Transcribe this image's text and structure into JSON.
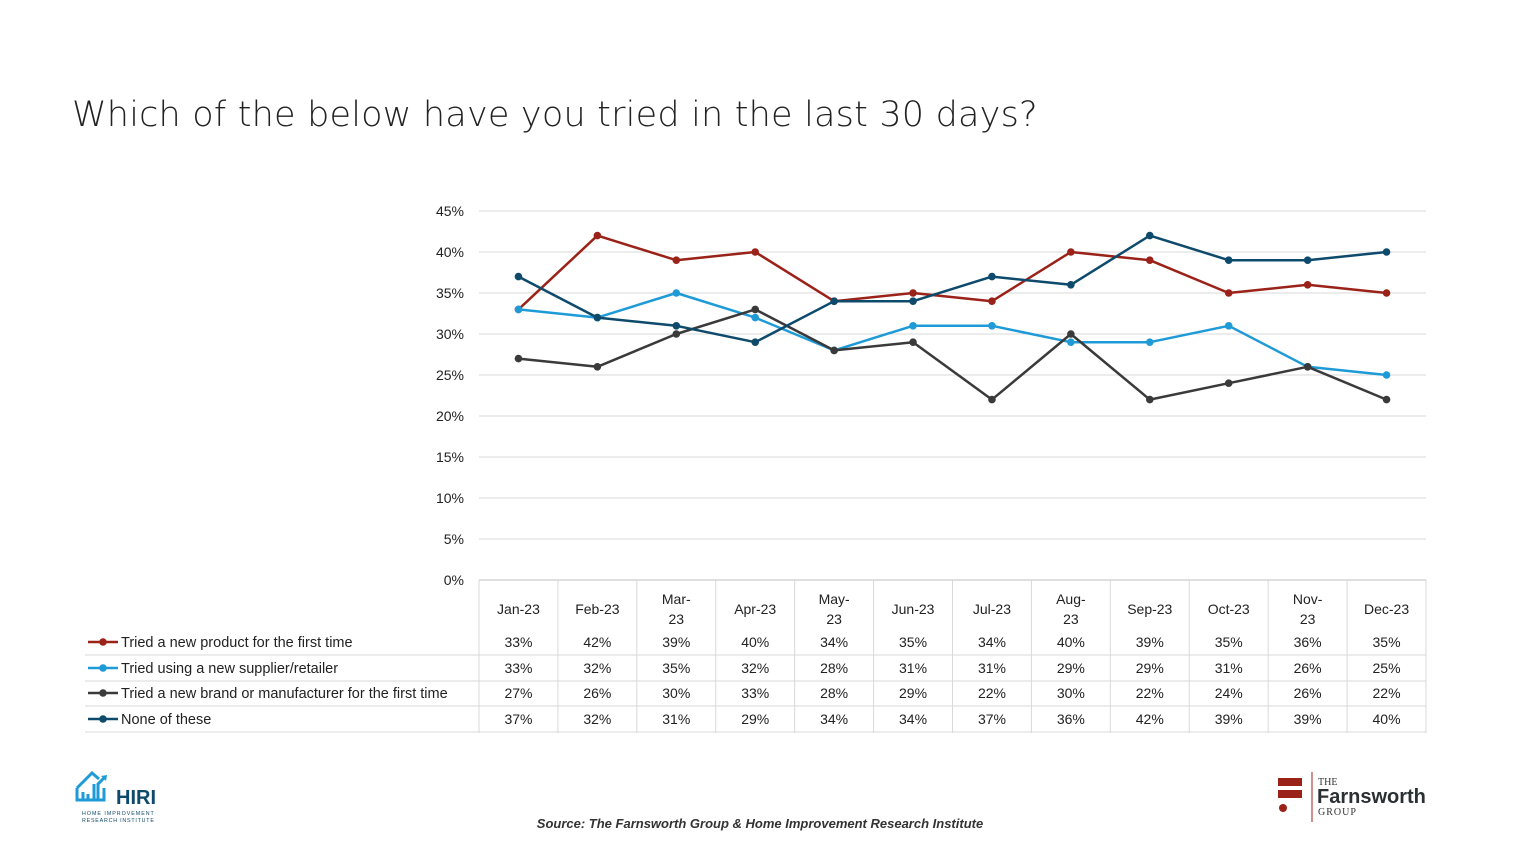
{
  "title": "Which of the below have you tried in the last 30 days?",
  "source": "Source: The Farnsworth Group & Home Improvement Research Institute",
  "logos": {
    "left": {
      "name": "HIRI",
      "line1": "HOME IMPROVEMENT",
      "line2": "RESEARCH INSTITUTE"
    },
    "right": {
      "the": "THE",
      "name": "Farnsworth",
      "group": "GROUP"
    }
  },
  "chart_data": {
    "type": "line",
    "title": "Which of the below have you tried in the last 30 days?",
    "categories": [
      "Jan-23",
      "Feb-23",
      "Mar-23",
      "Apr-23",
      "May-23",
      "Jun-23",
      "Jul-23",
      "Aug-23",
      "Sep-23",
      "Oct-23",
      "Nov-23",
      "Dec-23"
    ],
    "category_lines": [
      [
        "Jan-23"
      ],
      [
        "Feb-23"
      ],
      [
        "Mar-",
        "23"
      ],
      [
        "Apr-23"
      ],
      [
        "May-",
        "23"
      ],
      [
        "Jun-23"
      ],
      [
        "Jul-23"
      ],
      [
        "Aug-",
        "23"
      ],
      [
        "Sep-23"
      ],
      [
        "Oct-23"
      ],
      [
        "Nov-",
        "23"
      ],
      [
        "Dec-23"
      ]
    ],
    "ylim": [
      0,
      45
    ],
    "yticks": [
      "0%",
      "5%",
      "10%",
      "15%",
      "20%",
      "25%",
      "30%",
      "35%",
      "40%",
      "45%"
    ],
    "grid": true,
    "legend": "data-table-below",
    "series": [
      {
        "name": "Tried a new product for the first time",
        "color": "#9b2219",
        "values": [
          33,
          42,
          39,
          40,
          34,
          35,
          34,
          40,
          39,
          35,
          36,
          35
        ]
      },
      {
        "name": "Tried using a new supplier/retailer",
        "color": "#1e9bd7",
        "values": [
          33,
          32,
          35,
          32,
          28,
          31,
          31,
          29,
          29,
          31,
          26,
          25
        ]
      },
      {
        "name": "Tried a new brand or manufacturer for the first time",
        "color": "#3a3a3a",
        "values": [
          27,
          26,
          30,
          33,
          28,
          29,
          22,
          30,
          22,
          24,
          26,
          22
        ]
      },
      {
        "name": "None of these",
        "color": "#0d4a6b",
        "values": [
          37,
          32,
          31,
          29,
          34,
          34,
          37,
          36,
          42,
          39,
          39,
          40
        ]
      }
    ]
  }
}
